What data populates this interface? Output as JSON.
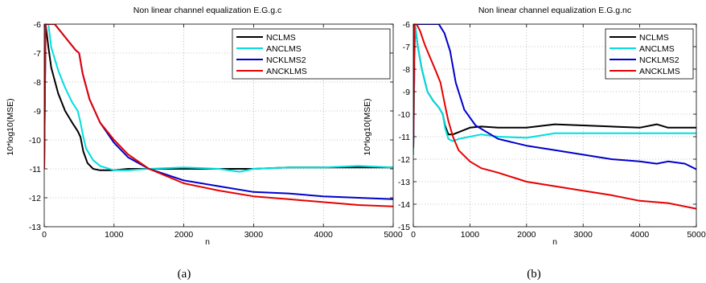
{
  "captions": [
    "(a)",
    "(b)"
  ],
  "chart_data": [
    {
      "type": "line",
      "title": "Non linear channel equalization E.G.g.c",
      "xlabel": "n",
      "ylabel": "10*log10(MSE)",
      "xlim": [
        0,
        5000
      ],
      "ylim": [
        -13,
        -6
      ],
      "xticks": [
        "0",
        "1000",
        "2000",
        "3000",
        "4000",
        "5000"
      ],
      "yticks": [
        "-6",
        "-7",
        "-8",
        "-9",
        "-10",
        "-11",
        "-12",
        "-13"
      ],
      "grid": true,
      "legend_position": "top-right",
      "series": [
        {
          "name": "NCLMS",
          "color": "#000000",
          "x": [
            0,
            20,
            60,
            100,
            200,
            300,
            400,
            480,
            520,
            560,
            620,
            700,
            800,
            1000,
            1200,
            1500,
            2000,
            2500,
            3000,
            3500,
            4000,
            4500,
            5000
          ],
          "y": [
            -10.5,
            -6.0,
            -6.8,
            -7.5,
            -8.4,
            -9.0,
            -9.4,
            -9.7,
            -9.9,
            -10.4,
            -10.8,
            -11.0,
            -11.05,
            -11.05,
            -11.0,
            -11.0,
            -11.0,
            -11.0,
            -11.0,
            -10.95,
            -10.95,
            -10.95,
            -10.95
          ]
        },
        {
          "name": "ANCLMS",
          "color": "#00dede",
          "x": [
            0,
            20,
            60,
            100,
            200,
            300,
            400,
            480,
            520,
            560,
            600,
            700,
            800,
            1000,
            1200,
            1500,
            2000,
            2500,
            2800,
            3000,
            3500,
            4000,
            4500,
            5000
          ],
          "y": [
            -11.0,
            -6.0,
            -6.0,
            -6.8,
            -7.6,
            -8.2,
            -8.7,
            -9.0,
            -9.4,
            -9.9,
            -10.3,
            -10.7,
            -10.9,
            -11.05,
            -11.05,
            -11.0,
            -10.95,
            -11.0,
            -11.1,
            -11.0,
            -10.95,
            -10.95,
            -10.9,
            -10.95
          ]
        },
        {
          "name": "NCKLMS2",
          "color": "#0000cc",
          "x": [
            0,
            20,
            60,
            150,
            250,
            350,
            450,
            500,
            550,
            650,
            800,
            1000,
            1200,
            1500,
            2000,
            2500,
            3000,
            3500,
            4000,
            4500,
            5000
          ],
          "y": [
            -11.0,
            -6.0,
            -6.0,
            -6.0,
            -6.3,
            -6.6,
            -6.9,
            -7.0,
            -7.7,
            -8.6,
            -9.4,
            -10.1,
            -10.6,
            -11.0,
            -11.4,
            -11.6,
            -11.8,
            -11.85,
            -11.95,
            -12.0,
            -12.05
          ]
        },
        {
          "name": "ANCKLMS",
          "color": "#e60000",
          "x": [
            0,
            20,
            60,
            150,
            250,
            350,
            450,
            500,
            550,
            650,
            800,
            1000,
            1200,
            1500,
            2000,
            2500,
            3000,
            3500,
            4000,
            4500,
            5000
          ],
          "y": [
            -11.0,
            -6.0,
            -6.0,
            -6.0,
            -6.3,
            -6.6,
            -6.9,
            -7.0,
            -7.7,
            -8.6,
            -9.4,
            -10.0,
            -10.5,
            -11.0,
            -11.5,
            -11.75,
            -11.95,
            -12.05,
            -12.15,
            -12.25,
            -12.3
          ]
        }
      ]
    },
    {
      "type": "line",
      "title": "Non linear channel equalization E.G.g.nc",
      "xlabel": "n",
      "ylabel": "10*log10(MSE)",
      "xlim": [
        0,
        5000
      ],
      "ylim": [
        -15,
        -6
      ],
      "xticks": [
        "0",
        "1000",
        "2000",
        "3000",
        "4000",
        "5000"
      ],
      "yticks": [
        "-6",
        "-7",
        "-8",
        "-9",
        "-10",
        "-11",
        "-12",
        "-13",
        "-14",
        "-15"
      ],
      "grid": true,
      "legend_position": "top-right",
      "series": [
        {
          "name": "NCLMS",
          "color": "#000000",
          "x": [
            0,
            30,
            80,
            150,
            250,
            350,
            450,
            520,
            560,
            620,
            700,
            800,
            1000,
            1200,
            1500,
            2000,
            2500,
            3000,
            3500,
            4000,
            4300,
            4500,
            5000
          ],
          "y": [
            -11.5,
            -6.0,
            -7.0,
            -8.0,
            -9.0,
            -9.4,
            -9.7,
            -10.0,
            -10.5,
            -10.9,
            -10.9,
            -10.8,
            -10.6,
            -10.55,
            -10.6,
            -10.6,
            -10.45,
            -10.5,
            -10.55,
            -10.6,
            -10.45,
            -10.6,
            -10.6
          ]
        },
        {
          "name": "ANCLMS",
          "color": "#00dede",
          "x": [
            0,
            30,
            80,
            150,
            250,
            350,
            450,
            520,
            560,
            620,
            700,
            800,
            1000,
            1200,
            1500,
            2000,
            2500,
            3000,
            3500,
            4000,
            4500,
            5000
          ],
          "y": [
            -11.8,
            -6.0,
            -7.0,
            -8.0,
            -9.0,
            -9.4,
            -9.7,
            -10.0,
            -10.6,
            -11.1,
            -11.2,
            -11.1,
            -11.0,
            -10.9,
            -11.0,
            -11.05,
            -10.85,
            -10.85,
            -10.85,
            -10.85,
            -10.85,
            -10.85
          ]
        },
        {
          "name": "NCKLMS2",
          "color": "#0000cc",
          "x": [
            0,
            20,
            60,
            150,
            300,
            450,
            550,
            650,
            750,
            900,
            1100,
            1500,
            2000,
            2500,
            3000,
            3500,
            4000,
            4300,
            4500,
            4800,
            5000
          ],
          "y": [
            -11.5,
            -6.0,
            -6.0,
            -6.0,
            -6.0,
            -6.0,
            -6.4,
            -7.2,
            -8.6,
            -9.8,
            -10.5,
            -11.1,
            -11.4,
            -11.6,
            -11.8,
            -12.0,
            -12.1,
            -12.2,
            -12.1,
            -12.2,
            -12.45
          ]
        },
        {
          "name": "ANCKLMS",
          "color": "#e60000",
          "x": [
            0,
            20,
            60,
            120,
            200,
            300,
            400,
            480,
            520,
            560,
            620,
            700,
            800,
            1000,
            1200,
            1500,
            2000,
            2500,
            3000,
            3500,
            4000,
            4500,
            5000
          ],
          "y": [
            -11.5,
            -6.0,
            -6.0,
            -6.3,
            -6.9,
            -7.5,
            -8.1,
            -8.6,
            -9.1,
            -9.6,
            -10.3,
            -11.0,
            -11.6,
            -12.1,
            -12.4,
            -12.6,
            -13.0,
            -13.2,
            -13.4,
            -13.6,
            -13.85,
            -13.95,
            -14.2
          ]
        }
      ]
    }
  ]
}
